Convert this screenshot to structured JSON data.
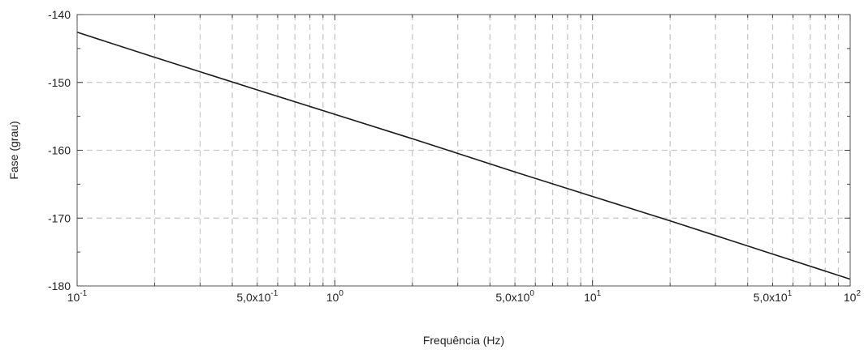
{
  "chart_data": {
    "type": "line",
    "xlabel": "Frequência (Hz)",
    "ylabel": "Fase (grau)",
    "x_scale": "log",
    "xlim": [
      0.1,
      100
    ],
    "ylim": [
      -180,
      -140
    ],
    "grid": true,
    "y_ticks": [
      {
        "value": -140,
        "label": "-140"
      },
      {
        "value": -150,
        "label": "-150"
      },
      {
        "value": -160,
        "label": "-160"
      },
      {
        "value": -170,
        "label": "-170"
      },
      {
        "value": -180,
        "label": "-180"
      }
    ],
    "x_tick_labels": [
      {
        "value": 0.1,
        "base": "10",
        "exp": "-1"
      },
      {
        "value": 0.5,
        "base": "5,0x10",
        "exp": "-1"
      },
      {
        "value": 1,
        "base": "10",
        "exp": "0"
      },
      {
        "value": 5,
        "base": "5,0x10",
        "exp": "0"
      },
      {
        "value": 10,
        "base": "10",
        "exp": "1"
      },
      {
        "value": 50,
        "base": "5,0x10",
        "exp": "1"
      },
      {
        "value": 100,
        "base": "10",
        "exp": "2"
      }
    ],
    "series": [
      {
        "color": "#1a1a1a",
        "x": [
          0.1,
          0.2,
          0.5,
          1,
          2,
          5,
          10,
          20,
          50,
          100
        ],
        "y": [
          -142.6,
          -146.3,
          -151.1,
          -154.7,
          -158.3,
          -163.2,
          -166.8,
          -170.4,
          -175.3,
          -179.0
        ]
      }
    ]
  }
}
